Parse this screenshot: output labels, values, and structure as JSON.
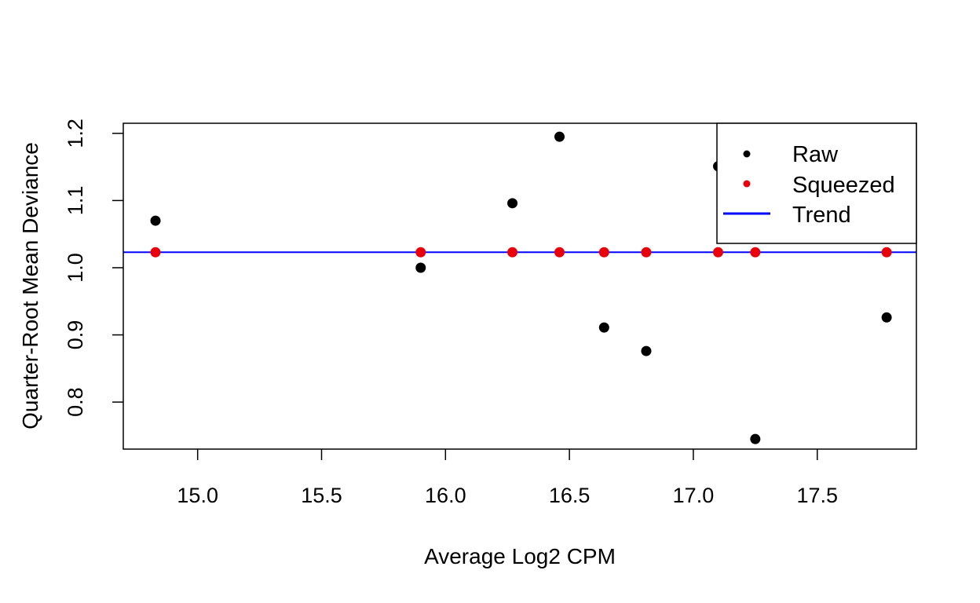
{
  "chart_data": {
    "type": "scatter",
    "title": "",
    "xlabel": "Average Log2 CPM",
    "ylabel": "Quarter-Root Mean Deviance",
    "xlim": [
      14.7,
      17.9
    ],
    "ylim": [
      0.73,
      1.215
    ],
    "x_ticks": [
      15.0,
      15.5,
      16.0,
      16.5,
      17.0,
      17.5
    ],
    "x_tick_labels": [
      "15.0",
      "15.5",
      "16.0",
      "16.5",
      "17.0",
      "17.5"
    ],
    "y_ticks": [
      0.8,
      0.9,
      1.0,
      1.1,
      1.2
    ],
    "y_tick_labels": [
      "0.8",
      "0.9",
      "1.0",
      "1.1",
      "1.2"
    ],
    "grid": false,
    "legend_position": "top-right",
    "series": [
      {
        "name": "Raw",
        "kind": "points",
        "color": "#000000",
        "x": [
          14.83,
          15.9,
          16.27,
          16.46,
          16.64,
          16.81,
          17.1,
          17.25,
          17.78
        ],
        "y": [
          1.07,
          1.0,
          1.096,
          1.195,
          0.911,
          0.876,
          1.151,
          0.745,
          0.926
        ]
      },
      {
        "name": "Squeezed",
        "kind": "points",
        "color": "#e8000b",
        "x": [
          14.83,
          15.9,
          16.27,
          16.46,
          16.64,
          16.81,
          17.1,
          17.25,
          17.78
        ],
        "y": [
          1.023,
          1.023,
          1.023,
          1.023,
          1.023,
          1.023,
          1.023,
          1.023,
          1.023
        ]
      },
      {
        "name": "Trend",
        "kind": "line",
        "color": "#0000ff",
        "x": [
          14.7,
          17.9
        ],
        "y": [
          1.023,
          1.023
        ]
      }
    ]
  }
}
